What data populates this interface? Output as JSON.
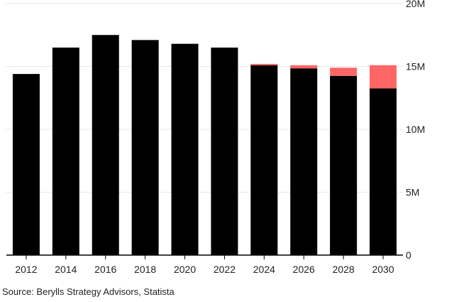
{
  "chart_data": {
    "type": "bar",
    "stacked": true,
    "categories": [
      "2012",
      "2014",
      "2016",
      "2018",
      "2020",
      "2022",
      "2024",
      "2026",
      "2028",
      "2030"
    ],
    "series": [
      {
        "values": [
          14.4,
          16.5,
          17.5,
          17.1,
          16.8,
          16.5,
          15.1,
          14.85,
          14.25,
          13.25
        ]
      },
      {
        "values": [
          0,
          0,
          0,
          0,
          0,
          0,
          0.1,
          0.25,
          0.65,
          1.85
        ]
      }
    ],
    "colors": [
      "#000000",
      "#ff6666"
    ],
    "yticks": [
      "0",
      "5M",
      "10M",
      "15M",
      "20M"
    ],
    "ytick_values": [
      0,
      5,
      10,
      15,
      20
    ],
    "ylim": [
      0,
      20
    ],
    "y_axis_position": "right",
    "grid": true,
    "title": "",
    "xlabel": "",
    "ylabel": ""
  },
  "source": "Source: Berylls Strategy Advisors, Statista"
}
